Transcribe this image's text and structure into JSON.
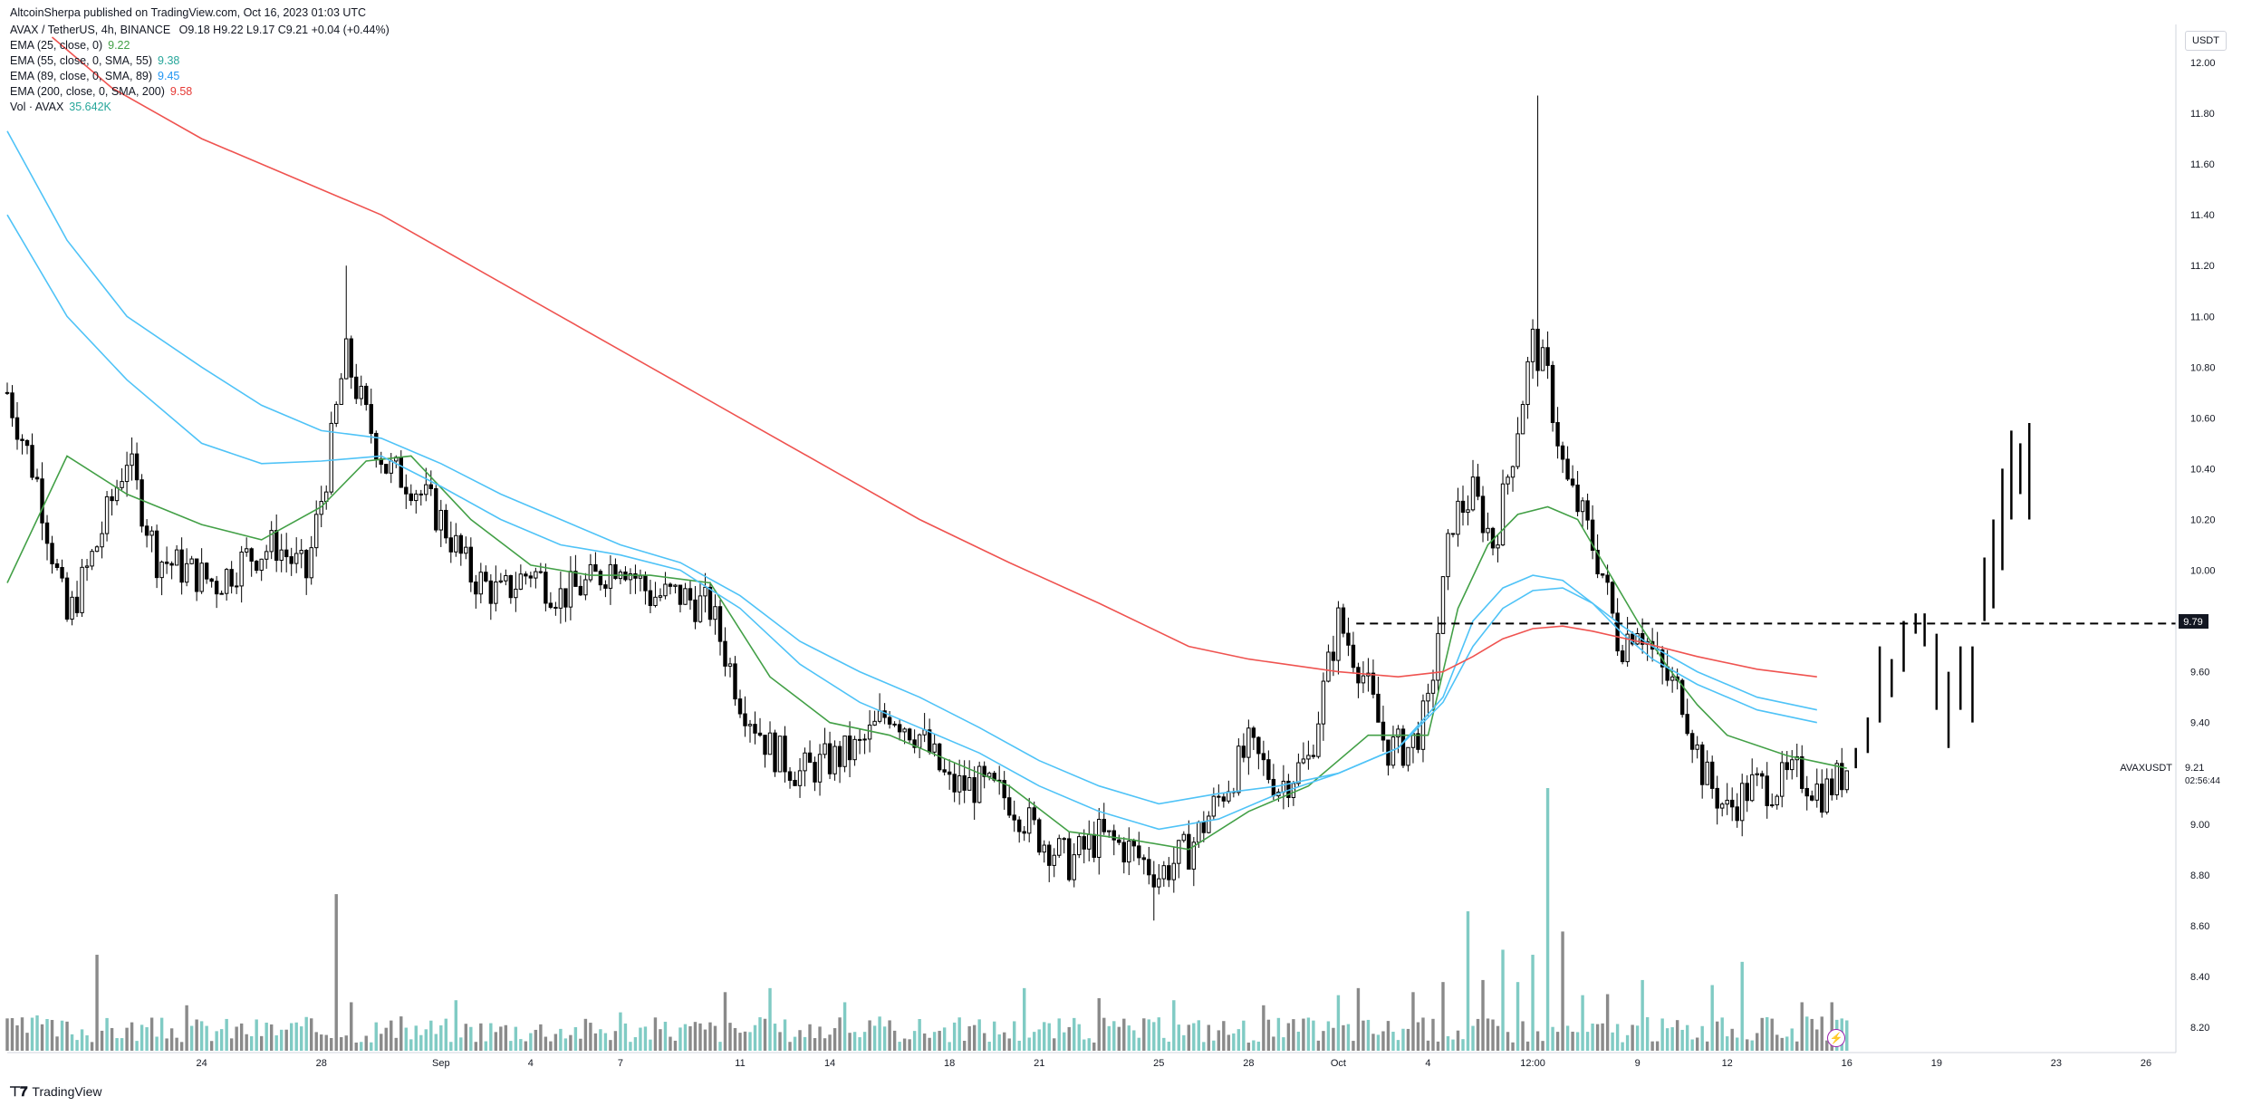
{
  "header": {
    "published": "AltcoinSherpa published on TradingView.com, Oct 16, 2023 01:03 UTC",
    "symbol_line": "AVAX / TetherUS, 4h, BINANCE",
    "ohlc": "O9.18  H9.22  L9.17  C9.21  +0.04 (+0.44%)"
  },
  "indicators": [
    {
      "label": "EMA (25, close, 0)",
      "value": "9.22",
      "color": "#43a047"
    },
    {
      "label": "EMA (55, close, 0, SMA, 55)",
      "value": "9.38",
      "color": "#26a69a"
    },
    {
      "label": "EMA (89, close, 0, SMA, 89)",
      "value": "9.45",
      "color": "#2196f3"
    },
    {
      "label": "EMA (200, close, 0, SMA, 200)",
      "value": "9.58",
      "color": "#e53935"
    },
    {
      "label": "Vol · AVAX",
      "value": "35.642K",
      "color": "#26a69a"
    }
  ],
  "axis": {
    "unit": "USDT",
    "symbol_tag": "AVAXUSDT",
    "countdown": "02:56:44",
    "last_price_label": "9.21",
    "level_label": "9.79"
  },
  "brand": {
    "name": "TradingView",
    "icon": "tradingview-logo-icon"
  },
  "chart_data": {
    "type": "candlestick",
    "title": "AVAX / TetherUS, 4h, BINANCE",
    "ylim": [
      8.1,
      12.15
    ],
    "y_ticks": [
      "12.00",
      "11.80",
      "11.60",
      "11.40",
      "11.20",
      "11.00",
      "10.80",
      "10.60",
      "10.40",
      "10.20",
      "10.00",
      "9.60",
      "9.40",
      "9.00",
      "8.80",
      "8.60",
      "8.40",
      "8.20"
    ],
    "x_ticks": [
      "24",
      "28",
      "Sep",
      "4",
      "7",
      "11",
      "14",
      "18",
      "21",
      "25",
      "28",
      "Oct",
      "4",
      "12:00",
      "9",
      "12",
      "16",
      "19",
      "23",
      "26"
    ],
    "x_tick_time": [
      0,
      4,
      8,
      11,
      14,
      18,
      21,
      25,
      28,
      32,
      35,
      38,
      41,
      44.5,
      48,
      51,
      55,
      58,
      62,
      65
    ],
    "time_range": [
      -6.5,
      66
    ],
    "last_time": 55,
    "horizontal_level": 9.79,
    "last_price": 9.21,
    "ohlc_anchors": [
      [
        -6.5,
        10.7
      ],
      [
        -5.5,
        10.35
      ],
      [
        -4.5,
        9.8
      ],
      [
        -3.5,
        10.1
      ],
      [
        -2.5,
        10.45
      ],
      [
        -1.5,
        10.05
      ],
      [
        -0.5,
        10.0
      ],
      [
        0.5,
        9.95
      ],
      [
        1.5,
        10.05
      ],
      [
        2.5,
        10.1
      ],
      [
        3.5,
        9.98
      ],
      [
        4.2,
        10.4
      ],
      [
        4.8,
        10.85
      ],
      [
        5.5,
        10.6
      ],
      [
        6.2,
        10.4
      ],
      [
        7.0,
        10.35
      ],
      [
        8.0,
        10.2
      ],
      [
        9.0,
        9.98
      ],
      [
        10.0,
        9.9
      ],
      [
        11.0,
        10.0
      ],
      [
        12.0,
        9.9
      ],
      [
        13.0,
        9.95
      ],
      [
        14.0,
        10.05
      ],
      [
        15.0,
        9.9
      ],
      [
        16.0,
        9.9
      ],
      [
        17.0,
        9.85
      ],
      [
        18.0,
        9.5
      ],
      [
        19.0,
        9.3
      ],
      [
        20.0,
        9.2
      ],
      [
        21.0,
        9.25
      ],
      [
        22.0,
        9.3
      ],
      [
        23.0,
        9.45
      ],
      [
        24.0,
        9.35
      ],
      [
        25.0,
        9.15
      ],
      [
        26.0,
        9.15
      ],
      [
        27.0,
        9.1
      ],
      [
        28.0,
        8.95
      ],
      [
        29.0,
        8.85
      ],
      [
        30.0,
        8.95
      ],
      [
        31.0,
        8.9
      ],
      [
        32.0,
        8.8
      ],
      [
        33.0,
        8.9
      ],
      [
        34.0,
        9.1
      ],
      [
        35.0,
        9.3
      ],
      [
        36.0,
        9.15
      ],
      [
        37.0,
        9.25
      ],
      [
        38.0,
        9.8
      ],
      [
        38.8,
        9.6
      ],
      [
        39.6,
        9.3
      ],
      [
        40.4,
        9.3
      ],
      [
        41.0,
        9.45
      ],
      [
        41.8,
        10.2
      ],
      [
        42.5,
        10.3
      ],
      [
        43.2,
        10.1
      ],
      [
        43.8,
        10.45
      ],
      [
        44.5,
        10.9
      ],
      [
        45.0,
        10.75
      ],
      [
        45.6,
        10.35
      ],
      [
        46.2,
        10.2
      ],
      [
        46.8,
        10.0
      ],
      [
        47.4,
        9.7
      ],
      [
        48.0,
        9.8
      ],
      [
        48.8,
        9.6
      ],
      [
        49.5,
        9.5
      ],
      [
        50.2,
        9.2
      ],
      [
        51.0,
        9.05
      ],
      [
        51.8,
        9.15
      ],
      [
        52.6,
        9.15
      ],
      [
        53.4,
        9.2
      ],
      [
        54.2,
        9.12
      ],
      [
        55.0,
        9.21
      ]
    ],
    "projection": [
      {
        "t": 55.3,
        "low": 9.22,
        "high": 9.3
      },
      {
        "t": 55.7,
        "low": 9.28,
        "high": 9.42
      },
      {
        "t": 56.1,
        "low": 9.4,
        "high": 9.7
      },
      {
        "t": 56.5,
        "low": 9.5,
        "high": 9.65
      },
      {
        "t": 56.9,
        "low": 9.6,
        "high": 9.8
      },
      {
        "t": 57.3,
        "low": 9.75,
        "high": 9.83
      },
      {
        "t": 57.6,
        "low": 9.7,
        "high": 9.83
      },
      {
        "t": 58.0,
        "low": 9.45,
        "high": 9.75
      },
      {
        "t": 58.4,
        "low": 9.3,
        "high": 9.6
      },
      {
        "t": 58.8,
        "low": 9.45,
        "high": 9.7
      },
      {
        "t": 59.2,
        "low": 9.4,
        "high": 9.7
      },
      {
        "t": 59.6,
        "low": 9.8,
        "high": 10.05
      },
      {
        "t": 59.9,
        "low": 9.85,
        "high": 10.2
      },
      {
        "t": 60.2,
        "low": 10.0,
        "high": 10.4
      },
      {
        "t": 60.5,
        "low": 10.2,
        "high": 10.55
      },
      {
        "t": 60.8,
        "low": 10.3,
        "high": 10.5
      },
      {
        "t": 61.1,
        "low": 10.2,
        "high": 10.58
      }
    ],
    "ema_lines": [
      {
        "name": "EMA (25, close, 0)",
        "color": "#43a047",
        "points": [
          [
            -6.5,
            9.95
          ],
          [
            -4.5,
            10.45
          ],
          [
            -2.5,
            10.3
          ],
          [
            0,
            10.18
          ],
          [
            2,
            10.12
          ],
          [
            4,
            10.25
          ],
          [
            5.5,
            10.43
          ],
          [
            7,
            10.45
          ],
          [
            9,
            10.2
          ],
          [
            11,
            10.02
          ],
          [
            13,
            9.98
          ],
          [
            15,
            9.98
          ],
          [
            17,
            9.95
          ],
          [
            19,
            9.58
          ],
          [
            21,
            9.4
          ],
          [
            23,
            9.35
          ],
          [
            25,
            9.25
          ],
          [
            27,
            9.15
          ],
          [
            29,
            8.97
          ],
          [
            31,
            8.94
          ],
          [
            33,
            8.9
          ],
          [
            35,
            9.05
          ],
          [
            37,
            9.15
          ],
          [
            39,
            9.35
          ],
          [
            41,
            9.35
          ],
          [
            42,
            9.85
          ],
          [
            43,
            10.1
          ],
          [
            44,
            10.22
          ],
          [
            45,
            10.25
          ],
          [
            46,
            10.2
          ],
          [
            47,
            10.0
          ],
          [
            48,
            9.8
          ],
          [
            49,
            9.62
          ],
          [
            50,
            9.47
          ],
          [
            51,
            9.35
          ],
          [
            53,
            9.27
          ],
          [
            55,
            9.22
          ]
        ]
      },
      {
        "name": "EMA (55, close, 0, SMA, 55)",
        "color": "#4fc3f7",
        "points": [
          [
            -6.5,
            11.4
          ],
          [
            -4.5,
            11.0
          ],
          [
            -2.5,
            10.75
          ],
          [
            0,
            10.5
          ],
          [
            2,
            10.42
          ],
          [
            4,
            10.43
          ],
          [
            6,
            10.45
          ],
          [
            8,
            10.33
          ],
          [
            10,
            10.2
          ],
          [
            12,
            10.1
          ],
          [
            14,
            10.06
          ],
          [
            16,
            10.0
          ],
          [
            18,
            9.85
          ],
          [
            20,
            9.63
          ],
          [
            22,
            9.48
          ],
          [
            24,
            9.38
          ],
          [
            26,
            9.28
          ],
          [
            28,
            9.15
          ],
          [
            30,
            9.05
          ],
          [
            32,
            8.98
          ],
          [
            34,
            9.02
          ],
          [
            36,
            9.12
          ],
          [
            38,
            9.2
          ],
          [
            40,
            9.3
          ],
          [
            41.5,
            9.5
          ],
          [
            42.5,
            9.8
          ],
          [
            43.5,
            9.93
          ],
          [
            44.5,
            9.98
          ],
          [
            45.5,
            9.96
          ],
          [
            46.5,
            9.87
          ],
          [
            47.5,
            9.75
          ],
          [
            48.5,
            9.65
          ],
          [
            50,
            9.55
          ],
          [
            52,
            9.45
          ],
          [
            54,
            9.4
          ]
        ]
      },
      {
        "name": "EMA (89, close, 0, SMA, 89)",
        "color": "#4fc3f7",
        "points": [
          [
            -6.5,
            11.73
          ],
          [
            -4.5,
            11.3
          ],
          [
            -2.5,
            11.0
          ],
          [
            0,
            10.8
          ],
          [
            2,
            10.65
          ],
          [
            4,
            10.55
          ],
          [
            6,
            10.52
          ],
          [
            8,
            10.42
          ],
          [
            10,
            10.3
          ],
          [
            12,
            10.2
          ],
          [
            14,
            10.1
          ],
          [
            16,
            10.03
          ],
          [
            18,
            9.9
          ],
          [
            20,
            9.72
          ],
          [
            22,
            9.6
          ],
          [
            24,
            9.5
          ],
          [
            26,
            9.38
          ],
          [
            28,
            9.25
          ],
          [
            30,
            9.15
          ],
          [
            32,
            9.08
          ],
          [
            34,
            9.12
          ],
          [
            36,
            9.15
          ],
          [
            38,
            9.2
          ],
          [
            40,
            9.3
          ],
          [
            41.5,
            9.48
          ],
          [
            42.5,
            9.7
          ],
          [
            43.5,
            9.85
          ],
          [
            44.5,
            9.92
          ],
          [
            45.5,
            9.93
          ],
          [
            46.5,
            9.87
          ],
          [
            47.5,
            9.78
          ],
          [
            48.5,
            9.7
          ],
          [
            50,
            9.6
          ],
          [
            52,
            9.5
          ],
          [
            54,
            9.45
          ]
        ]
      },
      {
        "name": "EMA (200, close, 0, SMA, 200)",
        "color": "#ef5350",
        "points": [
          [
            -5,
            12.1
          ],
          [
            -3,
            11.9
          ],
          [
            0,
            11.7
          ],
          [
            3,
            11.55
          ],
          [
            6,
            11.4
          ],
          [
            9,
            11.2
          ],
          [
            12,
            11.0
          ],
          [
            15,
            10.8
          ],
          [
            18,
            10.6
          ],
          [
            21,
            10.4
          ],
          [
            24,
            10.2
          ],
          [
            27,
            10.03
          ],
          [
            30,
            9.87
          ],
          [
            33,
            9.7
          ],
          [
            35,
            9.65
          ],
          [
            38,
            9.6
          ],
          [
            40,
            9.58
          ],
          [
            41.5,
            9.6
          ],
          [
            42.5,
            9.66
          ],
          [
            43.5,
            9.73
          ],
          [
            44.5,
            9.77
          ],
          [
            45.5,
            9.78
          ],
          [
            46.5,
            9.76
          ],
          [
            48,
            9.72
          ],
          [
            50,
            9.66
          ],
          [
            52,
            9.61
          ],
          [
            54,
            9.58
          ]
        ]
      }
    ],
    "volume": {
      "ylim": [
        0,
        260
      ],
      "spikes": [
        [
          -6.5,
          32
        ],
        [
          -5.5,
          35
        ],
        [
          -3.5,
          95
        ],
        [
          -0.5,
          45
        ],
        [
          4.5,
          155
        ],
        [
          5.0,
          48
        ],
        [
          8.5,
          50
        ],
        [
          14.0,
          38
        ],
        [
          17.5,
          58
        ],
        [
          19.0,
          62
        ],
        [
          21.5,
          48
        ],
        [
          27.5,
          62
        ],
        [
          30.0,
          52
        ],
        [
          32.5,
          50
        ],
        [
          35.5,
          45
        ],
        [
          38.0,
          55
        ],
        [
          38.6,
          62
        ],
        [
          40.5,
          58
        ],
        [
          41.5,
          68
        ],
        [
          42.4,
          138
        ],
        [
          42.8,
          70
        ],
        [
          43.5,
          100
        ],
        [
          44.0,
          68
        ],
        [
          44.5,
          95
        ],
        [
          45.0,
          260
        ],
        [
          45.5,
          118
        ],
        [
          46.2,
          55
        ],
        [
          47.0,
          56
        ],
        [
          48.2,
          70
        ],
        [
          50.5,
          65
        ],
        [
          51.5,
          88
        ],
        [
          53.5,
          48
        ],
        [
          54.5,
          48
        ]
      ]
    }
  }
}
